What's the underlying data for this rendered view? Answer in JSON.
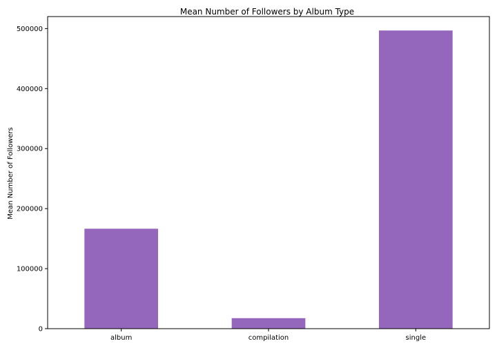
{
  "chart_data": {
    "type": "bar",
    "title": "Mean Number of Followers by Album Type",
    "xlabel": "",
    "ylabel": "Mean Number of Followers",
    "categories": [
      "album",
      "compilation",
      "single"
    ],
    "values": [
      166500,
      17500,
      496800
    ],
    "ylim": [
      0,
      520000
    ],
    "yticks": [
      0,
      100000,
      200000,
      300000,
      400000,
      500000
    ],
    "ytick_labels": [
      "0",
      "100000",
      "200000",
      "300000",
      "400000",
      "500000"
    ],
    "grid": false,
    "bar_color": "#9467bd"
  }
}
